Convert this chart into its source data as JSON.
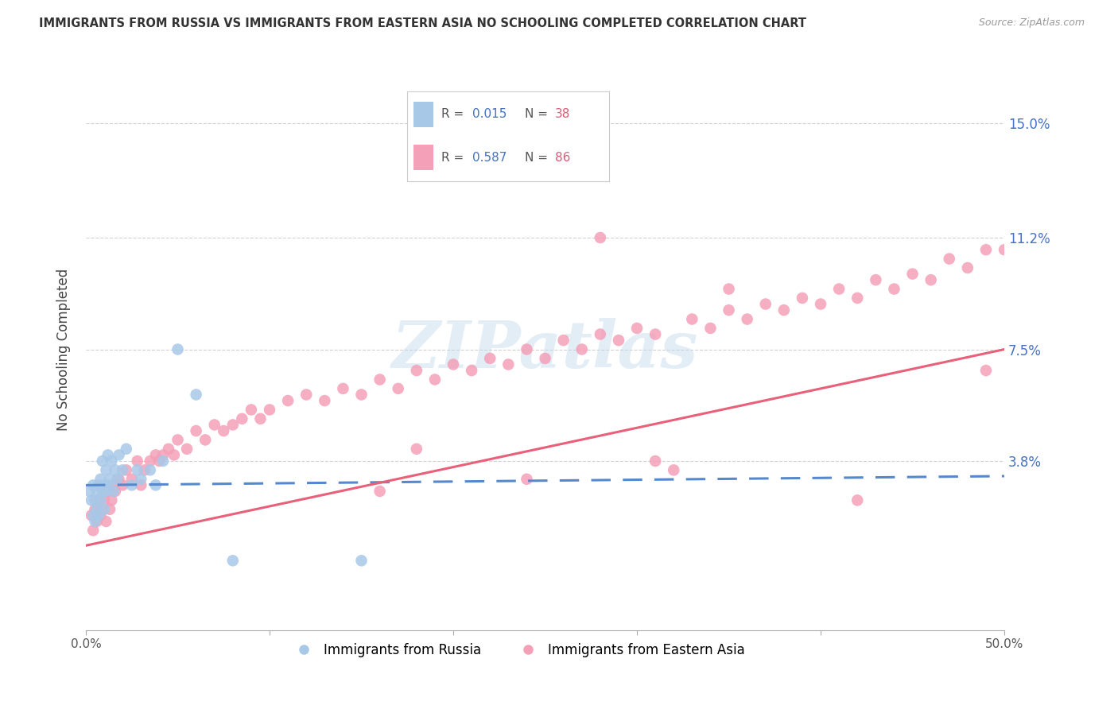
{
  "title": "IMMIGRANTS FROM RUSSIA VS IMMIGRANTS FROM EASTERN ASIA NO SCHOOLING COMPLETED CORRELATION CHART",
  "source": "Source: ZipAtlas.com",
  "ylabel": "No Schooling Completed",
  "ytick_labels": [
    "15.0%",
    "11.2%",
    "7.5%",
    "3.8%"
  ],
  "ytick_values": [
    0.15,
    0.112,
    0.075,
    0.038
  ],
  "xlim": [
    0.0,
    0.5
  ],
  "ylim": [
    -0.018,
    0.168
  ],
  "legend_r1": "R = 0.015",
  "legend_n1": "N = 38",
  "legend_r2": "R = 0.587",
  "legend_n2": "N = 86",
  "label1": "Immigrants from Russia",
  "label2": "Immigrants from Eastern Asia",
  "color_russia": "#a8c8e8",
  "color_east_asia": "#f4a0b8",
  "line_color_russia": "#5588cc",
  "line_color_east_asia": "#e8607a",
  "watermark": "ZIPatlas",
  "russia_x": [
    0.002,
    0.003,
    0.004,
    0.004,
    0.005,
    0.005,
    0.006,
    0.006,
    0.007,
    0.007,
    0.008,
    0.008,
    0.009,
    0.009,
    0.01,
    0.01,
    0.011,
    0.011,
    0.012,
    0.012,
    0.013,
    0.014,
    0.015,
    0.016,
    0.017,
    0.018,
    0.02,
    0.022,
    0.025,
    0.028,
    0.03,
    0.035,
    0.038,
    0.042,
    0.05,
    0.06,
    0.08,
    0.15
  ],
  "russia_y": [
    0.028,
    0.025,
    0.03,
    0.02,
    0.025,
    0.018,
    0.028,
    0.022,
    0.03,
    0.02,
    0.032,
    0.025,
    0.038,
    0.028,
    0.03,
    0.022,
    0.035,
    0.028,
    0.04,
    0.03,
    0.032,
    0.038,
    0.028,
    0.035,
    0.032,
    0.04,
    0.035,
    0.042,
    0.03,
    0.035,
    0.032,
    0.035,
    0.03,
    0.038,
    0.075,
    0.06,
    0.005,
    0.005
  ],
  "east_asia_x": [
    0.003,
    0.004,
    0.005,
    0.006,
    0.007,
    0.008,
    0.009,
    0.01,
    0.011,
    0.012,
    0.013,
    0.014,
    0.015,
    0.016,
    0.018,
    0.02,
    0.022,
    0.025,
    0.028,
    0.03,
    0.032,
    0.035,
    0.038,
    0.04,
    0.042,
    0.045,
    0.048,
    0.05,
    0.055,
    0.06,
    0.065,
    0.07,
    0.075,
    0.08,
    0.085,
    0.09,
    0.095,
    0.1,
    0.11,
    0.12,
    0.13,
    0.14,
    0.15,
    0.16,
    0.17,
    0.18,
    0.19,
    0.2,
    0.21,
    0.22,
    0.23,
    0.24,
    0.25,
    0.26,
    0.27,
    0.28,
    0.29,
    0.3,
    0.31,
    0.32,
    0.33,
    0.34,
    0.35,
    0.36,
    0.37,
    0.38,
    0.39,
    0.4,
    0.41,
    0.42,
    0.43,
    0.44,
    0.45,
    0.46,
    0.47,
    0.48,
    0.49,
    0.5,
    0.35,
    0.28,
    0.42,
    0.16,
    0.31,
    0.24,
    0.18,
    0.49
  ],
  "east_asia_y": [
    0.02,
    0.015,
    0.022,
    0.018,
    0.025,
    0.02,
    0.022,
    0.025,
    0.018,
    0.028,
    0.022,
    0.025,
    0.03,
    0.028,
    0.032,
    0.03,
    0.035,
    0.032,
    0.038,
    0.03,
    0.035,
    0.038,
    0.04,
    0.038,
    0.04,
    0.042,
    0.04,
    0.045,
    0.042,
    0.048,
    0.045,
    0.05,
    0.048,
    0.05,
    0.052,
    0.055,
    0.052,
    0.055,
    0.058,
    0.06,
    0.058,
    0.062,
    0.06,
    0.065,
    0.062,
    0.068,
    0.065,
    0.07,
    0.068,
    0.072,
    0.07,
    0.075,
    0.072,
    0.078,
    0.075,
    0.08,
    0.078,
    0.082,
    0.08,
    0.035,
    0.085,
    0.082,
    0.088,
    0.085,
    0.09,
    0.088,
    0.092,
    0.09,
    0.095,
    0.092,
    0.098,
    0.095,
    0.1,
    0.098,
    0.105,
    0.102,
    0.108,
    0.108,
    0.095,
    0.112,
    0.025,
    0.028,
    0.038,
    0.032,
    0.042,
    0.068
  ],
  "russia_line_x": [
    0.0,
    0.5
  ],
  "russia_line_y": [
    0.03,
    0.033
  ],
  "east_asia_line_x": [
    0.0,
    0.5
  ],
  "east_asia_line_y": [
    0.01,
    0.075
  ]
}
